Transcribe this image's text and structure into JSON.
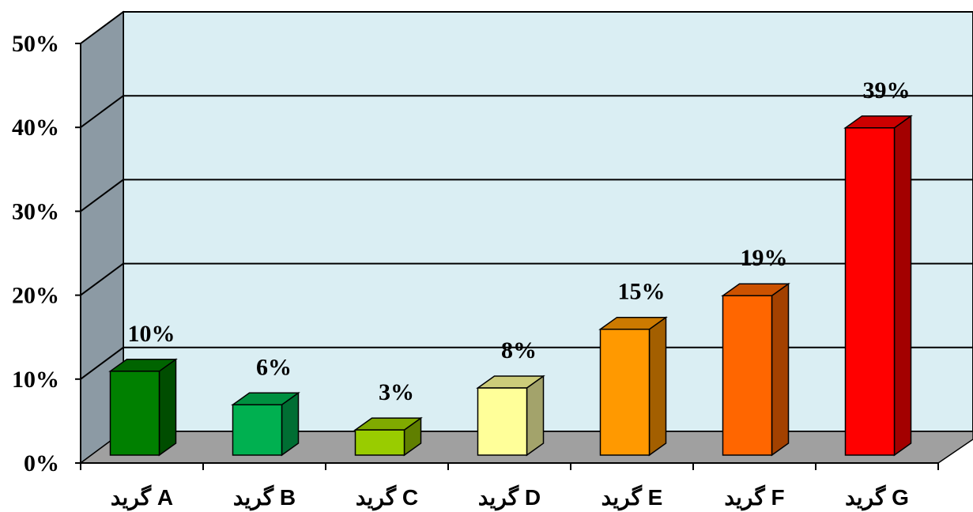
{
  "chart_data": {
    "type": "bar",
    "categories": [
      "گريد A",
      "گريد B",
      "گريد C",
      "گريد D",
      "گريد E",
      "گريد F",
      "گريد G"
    ],
    "values": [
      10,
      6,
      3,
      8,
      15,
      19,
      39
    ],
    "data_labels": [
      "10%",
      "6%",
      "3%",
      "8%",
      "15%",
      "19%",
      "39%"
    ],
    "yticks": [
      "0%",
      "10%",
      "20%",
      "30%",
      "40%",
      "50%"
    ],
    "ylim": [
      0,
      50
    ],
    "grid": true,
    "style": "3d-column",
    "colors": {
      "wall": "#daeef3",
      "side_wall": "#8c9aa4",
      "floor": "#a0a0a0",
      "bars": [
        {
          "front": "#008000",
          "top": "#006400",
          "side": "#004d00"
        },
        {
          "front": "#00b050",
          "top": "#009040",
          "side": "#006e33"
        },
        {
          "front": "#99cc00",
          "top": "#80aa00",
          "side": "#607f00"
        },
        {
          "front": "#ffff99",
          "top": "#cccc7a",
          "side": "#a3a36b"
        },
        {
          "front": "#ff9900",
          "top": "#cc7a00",
          "side": "#a35f00"
        },
        {
          "front": "#ff6600",
          "top": "#cc5200",
          "side": "#a34100"
        },
        {
          "front": "#ff0000",
          "top": "#cc0000",
          "side": "#a30000"
        }
      ]
    }
  }
}
